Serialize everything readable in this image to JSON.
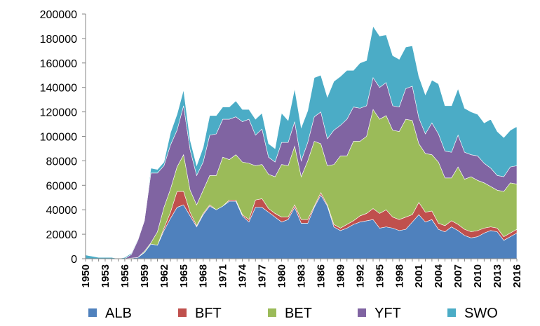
{
  "chart_data": {
    "type": "area",
    "stacked": true,
    "title": "",
    "xlabel": "",
    "ylabel": "",
    "ylim": [
      0,
      200000
    ],
    "yticks": [
      0,
      20000,
      40000,
      60000,
      80000,
      100000,
      120000,
      140000,
      160000,
      180000,
      200000
    ],
    "xlim": [
      1950,
      2016
    ],
    "xticks": [
      1950,
      1953,
      1956,
      1959,
      1962,
      1965,
      1968,
      1971,
      1974,
      1977,
      1980,
      1983,
      1986,
      1989,
      1992,
      1995,
      1998,
      2001,
      2004,
      2007,
      2010,
      2013,
      2016
    ],
    "grid": false,
    "legend_position": "bottom",
    "x": [
      1950,
      1951,
      1952,
      1953,
      1954,
      1955,
      1956,
      1957,
      1958,
      1959,
      1960,
      1961,
      1962,
      1963,
      1964,
      1965,
      1966,
      1967,
      1968,
      1969,
      1970,
      1971,
      1972,
      1973,
      1974,
      1975,
      1976,
      1977,
      1978,
      1979,
      1980,
      1981,
      1982,
      1983,
      1984,
      1985,
      1986,
      1987,
      1988,
      1989,
      1990,
      1991,
      1992,
      1993,
      1994,
      1995,
      1996,
      1997,
      1998,
      1999,
      2000,
      2001,
      2002,
      2003,
      2004,
      2005,
      2006,
      2007,
      2008,
      2009,
      2010,
      2011,
      2012,
      2013,
      2014,
      2015,
      2016
    ],
    "series": [
      {
        "name": "ALB",
        "color": "#4f81bd",
        "values": [
          0,
          0,
          0,
          0,
          0,
          0,
          0,
          500,
          1000,
          5000,
          12000,
          11000,
          23000,
          33000,
          42000,
          44000,
          35000,
          26000,
          36000,
          43000,
          40000,
          43000,
          47000,
          47000,
          35000,
          30000,
          42000,
          42000,
          38000,
          34000,
          30000,
          32000,
          42000,
          29000,
          29000,
          42000,
          52000,
          43000,
          26000,
          23000,
          25000,
          28000,
          30000,
          31000,
          32000,
          25000,
          26000,
          25000,
          23000,
          24000,
          30000,
          36000,
          30000,
          32000,
          24000,
          22000,
          26000,
          23000,
          19000,
          17000,
          18000,
          21000,
          23000,
          22000,
          15000,
          18000,
          21000
        ]
      },
      {
        "name": "BFT",
        "color": "#c0504d",
        "values": [
          0,
          0,
          0,
          0,
          0,
          0,
          0,
          0,
          0,
          0,
          0,
          0,
          2000,
          5000,
          13000,
          11000,
          3000,
          1000,
          1000,
          1000,
          0,
          0,
          1000,
          1000,
          1000,
          2000,
          6000,
          7000,
          3000,
          3000,
          4000,
          2000,
          2000,
          3000,
          3000,
          1000,
          2000,
          1000,
          2000,
          2000,
          3000,
          3000,
          5000,
          6000,
          9000,
          12000,
          14000,
          9000,
          9000,
          10000,
          6000,
          10000,
          8000,
          7000,
          5000,
          5000,
          5000,
          5000,
          5000,
          5000,
          5000,
          4000,
          3000,
          3000,
          3000,
          3000,
          3000
        ]
      },
      {
        "name": "BET",
        "color": "#9bbb59",
        "values": [
          0,
          0,
          0,
          0,
          0,
          0,
          0,
          0,
          0,
          1000,
          1000,
          11000,
          17000,
          19000,
          20000,
          30000,
          18000,
          17000,
          19000,
          24000,
          28000,
          40000,
          33000,
          37000,
          43000,
          46000,
          28000,
          28000,
          28000,
          30000,
          43000,
          42000,
          48000,
          35000,
          48000,
          53000,
          40000,
          32000,
          49000,
          59000,
          56000,
          65000,
          61000,
          63000,
          81000,
          77000,
          77000,
          71000,
          72000,
          80000,
          77000,
          48000,
          48000,
          46000,
          50000,
          39000,
          35000,
          47000,
          41000,
          45000,
          41000,
          37000,
          33000,
          31000,
          37000,
          41000,
          37000
        ]
      },
      {
        "name": "YFT",
        "color": "#8064a2",
        "values": [
          0,
          0,
          0,
          0,
          0,
          0,
          0,
          3000,
          14000,
          25000,
          57000,
          48000,
          34000,
          36000,
          30000,
          40000,
          33000,
          24000,
          23000,
          33000,
          34000,
          31000,
          33000,
          31000,
          33000,
          36000,
          25000,
          29000,
          14000,
          12000,
          18000,
          19000,
          20000,
          13000,
          15000,
          20000,
          26000,
          22000,
          28000,
          25000,
          30000,
          28000,
          27000,
          25000,
          26000,
          26000,
          27000,
          20000,
          20000,
          25000,
          28000,
          21000,
          16000,
          26000,
          23000,
          22000,
          21000,
          26000,
          22000,
          18000,
          20000,
          16000,
          15000,
          12000,
          12000,
          13000,
          15000
        ]
      },
      {
        "name": "SWO",
        "color": "#4bacc6",
        "values": [
          3000,
          2000,
          1000,
          1000,
          1000,
          0,
          1000,
          1000,
          1000,
          1000,
          4000,
          3000,
          3000,
          10000,
          13000,
          13000,
          8000,
          8000,
          12000,
          16000,
          15000,
          10000,
          10000,
          13000,
          10000,
          8000,
          13000,
          13000,
          11000,
          11000,
          24000,
          18000,
          27000,
          27000,
          26000,
          32000,
          30000,
          34000,
          40000,
          40000,
          40000,
          30000,
          37000,
          37000,
          42000,
          42000,
          39000,
          41000,
          39000,
          34000,
          33000,
          34000,
          32000,
          35000,
          41000,
          37000,
          38000,
          38000,
          36000,
          35000,
          34000,
          33000,
          40000,
          36000,
          32000,
          30000,
          32000
        ]
      }
    ]
  }
}
